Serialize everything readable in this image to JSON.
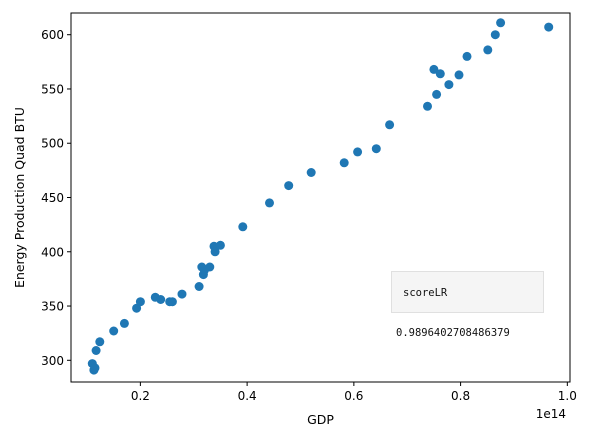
{
  "chart_data": {
    "type": "scatter",
    "xlabel": "GDP",
    "ylabel": "Energy Production Quad BTU",
    "x_offset_text": "1e14",
    "xlim": [
      0.07,
      1.005
    ],
    "ylim": [
      280,
      620
    ],
    "xticks": [
      0.2,
      0.4,
      0.6,
      0.8,
      1.0
    ],
    "xtick_labels": [
      "0.2",
      "0.4",
      "0.6",
      "0.8",
      "1.0"
    ],
    "yticks": [
      300,
      350,
      400,
      450,
      500,
      550,
      600
    ],
    "ytick_labels": [
      "300",
      "350",
      "400",
      "450",
      "500",
      "550",
      "600"
    ],
    "grid": false,
    "marker_color": "#1f77b4",
    "points": [
      {
        "x": 0.11,
        "y": 297
      },
      {
        "x": 0.113,
        "y": 291
      },
      {
        "x": 0.115,
        "y": 293
      },
      {
        "x": 0.117,
        "y": 309
      },
      {
        "x": 0.124,
        "y": 317
      },
      {
        "x": 0.15,
        "y": 327
      },
      {
        "x": 0.17,
        "y": 334
      },
      {
        "x": 0.193,
        "y": 348
      },
      {
        "x": 0.2,
        "y": 354
      },
      {
        "x": 0.228,
        "y": 358
      },
      {
        "x": 0.238,
        "y": 356
      },
      {
        "x": 0.255,
        "y": 354
      },
      {
        "x": 0.26,
        "y": 354
      },
      {
        "x": 0.278,
        "y": 361
      },
      {
        "x": 0.31,
        "y": 368
      },
      {
        "x": 0.315,
        "y": 386
      },
      {
        "x": 0.318,
        "y": 379
      },
      {
        "x": 0.32,
        "y": 383
      },
      {
        "x": 0.33,
        "y": 386
      },
      {
        "x": 0.338,
        "y": 405
      },
      {
        "x": 0.34,
        "y": 400
      },
      {
        "x": 0.35,
        "y": 406
      },
      {
        "x": 0.392,
        "y": 423
      },
      {
        "x": 0.442,
        "y": 445
      },
      {
        "x": 0.478,
        "y": 461
      },
      {
        "x": 0.52,
        "y": 473
      },
      {
        "x": 0.582,
        "y": 482
      },
      {
        "x": 0.607,
        "y": 492
      },
      {
        "x": 0.642,
        "y": 495
      },
      {
        "x": 0.667,
        "y": 517
      },
      {
        "x": 0.738,
        "y": 534
      },
      {
        "x": 0.75,
        "y": 568
      },
      {
        "x": 0.755,
        "y": 545
      },
      {
        "x": 0.762,
        "y": 564
      },
      {
        "x": 0.778,
        "y": 554
      },
      {
        "x": 0.797,
        "y": 563
      },
      {
        "x": 0.812,
        "y": 580
      },
      {
        "x": 0.851,
        "y": 586
      },
      {
        "x": 0.865,
        "y": 600
      },
      {
        "x": 0.875,
        "y": 611
      },
      {
        "x": 0.965,
        "y": 607
      }
    ]
  },
  "widget": {
    "label": "scoreLR",
    "value": "0.9896402708486379"
  }
}
